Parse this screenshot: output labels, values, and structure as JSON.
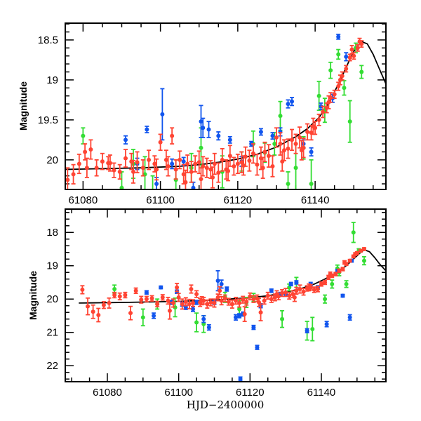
{
  "chart_data": [
    {
      "type": "scatter",
      "panel": "top",
      "title": "",
      "xlabel": "",
      "ylabel": "Magnitude",
      "xlim": [
        61075.4,
        61158.3
      ],
      "ylim": [
        20.37,
        18.29
      ],
      "y_inverted": true,
      "xticks": [
        61080,
        61100,
        61120,
        61140
      ],
      "xtick_labels": [
        "61080",
        "61100",
        "61120",
        "61140"
      ],
      "yticks": [
        18.5,
        19,
        19.5,
        20
      ],
      "ytick_labels": [
        "18.5",
        "19",
        "19.5",
        "20"
      ],
      "grid": false,
      "legend": "none",
      "model_curve": {
        "name": "model",
        "color": "#000000",
        "x": [
          61075,
          61085,
          61095,
          61105,
          61110,
          61115,
          61120,
          61125,
          61130,
          61135,
          61138,
          61141,
          61143,
          61145,
          61147,
          61149,
          61150.5,
          61152,
          61153.5,
          61155,
          61156.5,
          61158.3
        ],
        "y": [
          20.12,
          20.11,
          20.1,
          20.08,
          20.06,
          20.03,
          19.99,
          19.93,
          19.84,
          19.71,
          19.61,
          19.47,
          19.33,
          19.15,
          18.95,
          18.74,
          18.6,
          18.52,
          18.55,
          18.68,
          18.85,
          19.05
        ]
      },
      "series": [
        {
          "name": "red",
          "color": "#ff4433",
          "x": [
            61076,
            61077.5,
            61079,
            61080.5,
            61082,
            61083.5,
            61085,
            61086.5,
            61088,
            61089.5,
            61091,
            61092.5,
            61094,
            61095.5,
            61097,
            61098.5,
            61100,
            61101.5,
            61103,
            61104,
            61105,
            61106,
            61107,
            61108,
            61109,
            61110,
            61111,
            61112,
            61113,
            61114,
            61115,
            61116,
            61117,
            61118,
            61119,
            61120,
            61121,
            61122,
            61123,
            61124,
            61125,
            61126,
            61127,
            61128,
            61129,
            61130,
            61131,
            61132,
            61133,
            61134,
            61135,
            61136,
            61137,
            61138,
            61139,
            61140,
            61141,
            61142,
            61143,
            61144,
            61145,
            61146,
            61147,
            61148,
            61149,
            61150,
            61151,
            61152,
            61081,
            61087,
            61093,
            61099,
            61102,
            61106.5,
            61110.5,
            61113.5,
            61117.5,
            61121.5,
            61126.5,
            61131.5,
            61136.5,
            61139.5,
            61143.5,
            61146.5,
            61149.5,
            61151.5
          ],
          "y": [
            20.25,
            20.18,
            20.05,
            19.9,
            19.87,
            20.1,
            20.02,
            20.04,
            20.13,
            20.15,
            19.98,
            20.02,
            20.03,
            20.1,
            20.0,
            20.05,
            19.78,
            20.0,
            19.7,
            20.12,
            20.0,
            20.18,
            20.05,
            20.15,
            20.05,
            20.03,
            20.08,
            20.1,
            20.12,
            20.05,
            20.16,
            20.0,
            20.12,
            19.95,
            20.08,
            20.05,
            20.03,
            19.96,
            20.01,
            19.92,
            20.06,
            19.98,
            19.9,
            19.95,
            20.08,
            19.72,
            19.8,
            19.88,
            19.86,
            19.75,
            19.8,
            19.72,
            19.85,
            19.65,
            19.66,
            19.6,
            19.5,
            19.4,
            19.35,
            19.22,
            19.18,
            19.08,
            18.95,
            18.86,
            18.72,
            18.7,
            18.6,
            18.55,
            20.1,
            20.04,
            20.15,
            20.12,
            20.08,
            20.28,
            20.24,
            20.22,
            20.14,
            20.07,
            20.1,
            20.02,
            19.88,
            19.58,
            19.28,
            19.0,
            18.62,
            18.52
          ],
          "err": [
            0.15,
            0.12,
            0.12,
            0.1,
            0.12,
            0.1,
            0.1,
            0.08,
            0.09,
            0.09,
            0.11,
            0.1,
            0.13,
            0.1,
            0.12,
            0.1,
            0.1,
            0.12,
            0.1,
            0.12,
            0.11,
            0.12,
            0.11,
            0.13,
            0.1,
            0.14,
            0.12,
            0.12,
            0.11,
            0.13,
            0.12,
            0.14,
            0.12,
            0.13,
            0.11,
            0.12,
            0.13,
            0.12,
            0.13,
            0.12,
            0.13,
            0.14,
            0.12,
            0.14,
            0.13,
            0.12,
            0.14,
            0.13,
            0.12,
            0.13,
            0.12,
            0.13,
            0.12,
            0.1,
            0.09,
            0.08,
            0.07,
            0.07,
            0.06,
            0.06,
            0.05,
            0.05,
            0.05,
            0.04,
            0.04,
            0.04,
            0.04,
            0.04,
            0.12,
            0.1,
            0.14,
            0.13,
            0.12,
            0.15,
            0.14,
            0.13,
            0.12,
            0.12,
            0.13,
            0.12,
            0.12,
            0.1,
            0.08,
            0.06,
            0.05,
            0.04
          ]
        },
        {
          "name": "green",
          "color": "#33dd33",
          "x": [
            61080,
            61090,
            61093,
            61096,
            61098,
            61104,
            61108,
            61110.5,
            61116,
            61121,
            61124,
            61127,
            61129.5,
            61131,
            61133,
            61135,
            61137,
            61139,
            61141,
            61142.5,
            61144,
            61146,
            61147.5,
            61149,
            61150.5,
            61152
          ],
          "y": [
            19.7,
            20.35,
            20.05,
            20.18,
            20.4,
            20.25,
            20.1,
            19.85,
            20.15,
            20.02,
            19.8,
            19.91,
            19.8,
            19.45,
            20.3,
            20.1,
            19.85,
            20.3,
            19.2,
            19.38,
            18.88,
            18.68,
            19.1,
            19.52,
            18.6,
            18.9
          ],
          "err": [
            0.1,
            0.2,
            0.18,
            0.22,
            0.2,
            0.25,
            0.18,
            0.25,
            0.2,
            0.12,
            0.16,
            0.12,
            0.14,
            0.18,
            0.15,
            0.3,
            0.14,
            0.3,
            0.18,
            0.15,
            0.1,
            0.06,
            0.09,
            0.26,
            0.06,
            0.08
          ]
        },
        {
          "name": "blue",
          "color": "#1155ee",
          "x": [
            61091,
            61094,
            61096.5,
            61099,
            61100.5,
            61103,
            61106,
            61108.5,
            61110.5,
            61111,
            61112.5,
            61115,
            61118,
            61121,
            61123.5,
            61126,
            61129,
            61131,
            61133,
            61134,
            61137,
            61139,
            61141.5,
            61144.5,
            61146,
            61148
          ],
          "y": [
            19.75,
            20.05,
            19.62,
            20.3,
            19.43,
            20.05,
            20.02,
            20.35,
            19.52,
            19.6,
            19.62,
            19.7,
            19.75,
            20.02,
            19.8,
            19.65,
            19.7,
            19.65,
            19.3,
            19.27,
            19.8,
            19.9,
            19.33,
            19.23,
            18.46,
            18.71
          ],
          "err": [
            0.05,
            0.07,
            0.04,
            0.08,
            0.32,
            0.06,
            0.05,
            0.07,
            0.2,
            0.12,
            0.1,
            0.05,
            0.04,
            0.06,
            0.03,
            0.04,
            0.04,
            0.05,
            0.05,
            0.05,
            0.05,
            0.05,
            0.04,
            0.05,
            0.03,
            0.05
          ]
        }
      ]
    },
    {
      "type": "scatter",
      "panel": "bottom",
      "title": "",
      "xlabel": "HJD−2400000",
      "ylabel": "Magnitude",
      "xlim": [
        61068.2,
        61158.1
      ],
      "ylim": [
        22.48,
        17.3
      ],
      "y_inverted": true,
      "xticks": [
        61080,
        61100,
        61120,
        61140
      ],
      "xtick_labels": [
        "61080",
        "61100",
        "61120",
        "61140"
      ],
      "yticks": [
        18,
        19,
        20,
        21,
        22
      ],
      "ytick_labels": [
        "18",
        "19",
        "20",
        "21",
        "22"
      ],
      "grid": false,
      "legend": "none",
      "model_curve": {
        "name": "model",
        "color": "#000000",
        "x": [
          61072,
          61085,
          61100,
          61110,
          61120,
          61125,
          61130,
          61135,
          61138,
          61141,
          61144,
          61147,
          61149,
          61150.5,
          61152,
          61153.5,
          61155,
          61156.5,
          61158.1
        ],
        "y": [
          20.12,
          20.1,
          20.07,
          20.03,
          19.96,
          19.9,
          19.8,
          19.66,
          19.55,
          19.4,
          19.22,
          19.0,
          18.8,
          18.65,
          18.52,
          18.58,
          18.76,
          18.97,
          19.15
        ]
      },
      "series": [
        {
          "name": "red",
          "color": "#ff4433",
          "x": [
            61073,
            61074.5,
            61076,
            61077.5,
            61079,
            61080.5,
            61082,
            61083.5,
            61085,
            61086.5,
            61088,
            61089.5,
            61091,
            61092.5,
            61094,
            61095.5,
            61097,
            61098.5,
            61100,
            61101,
            61102,
            61103,
            61104,
            61105,
            61106,
            61107,
            61108,
            61109,
            61110,
            61111,
            61112,
            61113,
            61114,
            61115,
            61116,
            61117,
            61118,
            61119,
            61120,
            61121,
            61122,
            61123,
            61124,
            61125,
            61126,
            61127,
            61128,
            61129,
            61130,
            61131,
            61132,
            61133,
            61134,
            61135,
            61136,
            61137,
            61138,
            61139,
            61140,
            61141,
            61142,
            61143,
            61144,
            61145,
            61146,
            61147,
            61148,
            61149,
            61150,
            61151,
            61152,
            61097.5,
            61099.5,
            61103.5,
            61106.5,
            61111.5,
            61118.5,
            61122.5,
            61127.5,
            61132.5,
            61136.5,
            61142.5,
            61146.5,
            61149.5
          ],
          "y": [
            19.72,
            20.22,
            20.38,
            20.48,
            20.18,
            20.12,
            19.88,
            19.92,
            19.88,
            20.42,
            19.75,
            20.02,
            20.0,
            19.98,
            20.15,
            19.95,
            20.05,
            20.12,
            19.95,
            20.15,
            20.08,
            20.15,
            20.12,
            19.85,
            20.1,
            20.05,
            20.15,
            20.1,
            20.12,
            19.95,
            20.05,
            19.98,
            20.08,
            20.15,
            20.05,
            20.12,
            20.02,
            20.08,
            19.92,
            20.0,
            19.98,
            20.4,
            20.05,
            19.9,
            20.0,
            19.95,
            19.92,
            19.82,
            19.8,
            19.9,
            19.85,
            19.75,
            19.7,
            19.78,
            19.68,
            19.65,
            19.72,
            19.7,
            19.55,
            19.5,
            19.35,
            19.3,
            19.25,
            19.15,
            19.1,
            18.95,
            18.85,
            18.72,
            18.62,
            18.55,
            18.5,
            20.35,
            19.65,
            19.7,
            20.05,
            19.75,
            20.45,
            20.1,
            19.85,
            19.95,
            19.65,
            19.25,
            18.9,
            18.65
          ],
          "err": [
            0.12,
            0.25,
            0.2,
            0.2,
            0.1,
            0.15,
            0.08,
            0.1,
            0.08,
            0.2,
            0.08,
            0.1,
            0.08,
            0.08,
            0.08,
            0.08,
            0.1,
            0.12,
            0.12,
            0.15,
            0.12,
            0.14,
            0.1,
            0.1,
            0.12,
            0.1,
            0.12,
            0.1,
            0.12,
            0.1,
            0.12,
            0.1,
            0.1,
            0.12,
            0.1,
            0.12,
            0.1,
            0.1,
            0.1,
            0.1,
            0.1,
            0.25,
            0.1,
            0.1,
            0.1,
            0.1,
            0.1,
            0.1,
            0.12,
            0.1,
            0.1,
            0.1,
            0.12,
            0.1,
            0.08,
            0.08,
            0.08,
            0.08,
            0.06,
            0.06,
            0.06,
            0.05,
            0.05,
            0.05,
            0.05,
            0.04,
            0.04,
            0.04,
            0.04,
            0.04,
            0.04,
            0.25,
            0.12,
            0.12,
            0.12,
            0.12,
            0.22,
            0.12,
            0.1,
            0.12,
            0.1,
            0.06,
            0.05,
            0.04
          ]
        },
        {
          "name": "green",
          "color": "#33dd33",
          "x": [
            61082,
            61090,
            61094,
            61099,
            61105,
            61107,
            61113,
            61117,
            61119,
            61121,
            61129,
            61131,
            61133,
            61136,
            61137.5,
            61141,
            61143,
            61145,
            61147,
            61149,
            61150.5,
            61152,
            61144.5
          ],
          "y": [
            19.7,
            20.55,
            20.15,
            20.25,
            20.7,
            20.75,
            19.95,
            20.3,
            20.1,
            19.95,
            20.6,
            19.65,
            19.5,
            20.95,
            20.9,
            20.0,
            19.55,
            19.2,
            19.55,
            18.0,
            18.55,
            18.85,
            19.08
          ],
          "err": [
            0.12,
            0.25,
            0.15,
            0.28,
            0.28,
            0.25,
            0.15,
            0.25,
            0.15,
            0.12,
            0.25,
            0.1,
            0.15,
            0.28,
            0.35,
            0.12,
            0.12,
            0.1,
            0.1,
            0.3,
            0.06,
            0.12,
            0.1
          ]
        },
        {
          "name": "blue",
          "color": "#1155ee",
          "x": [
            61091,
            61093,
            61095,
            61098,
            61099.5,
            61101,
            61102,
            61104,
            61105,
            61107,
            61108.5,
            61110,
            61111,
            61112,
            61113.5,
            61116,
            61117,
            61118,
            61121,
            61122,
            61123,
            61126,
            61128.5,
            61130,
            61131.5,
            61133,
            61136,
            61137,
            61139,
            61141.5,
            61144.5,
            61146,
            61148,
            61148.5,
            61117.3
          ],
          "y": [
            19.8,
            20.5,
            19.65,
            20.1,
            19.78,
            20.15,
            20.25,
            20.3,
            20.1,
            20.6,
            20.85,
            20.1,
            19.45,
            19.55,
            19.7,
            20.55,
            20.5,
            20.45,
            20.85,
            21.45,
            20.2,
            19.75,
            19.85,
            19.85,
            19.55,
            19.5,
            20.95,
            19.55,
            19.65,
            20.75,
            19.15,
            19.9,
            20.55,
            18.85,
            22.4
          ],
          "err": [
            0.05,
            0.08,
            0.04,
            0.06,
            0.05,
            0.06,
            0.06,
            0.07,
            0.06,
            0.1,
            0.08,
            0.06,
            0.3,
            0.12,
            0.06,
            0.08,
            0.06,
            0.06,
            0.06,
            0.06,
            0.06,
            0.05,
            0.05,
            0.05,
            0.05,
            0.05,
            0.06,
            0.05,
            0.05,
            0.08,
            0.04,
            0.04,
            0.08,
            0.04,
            0.06
          ]
        }
      ]
    }
  ]
}
